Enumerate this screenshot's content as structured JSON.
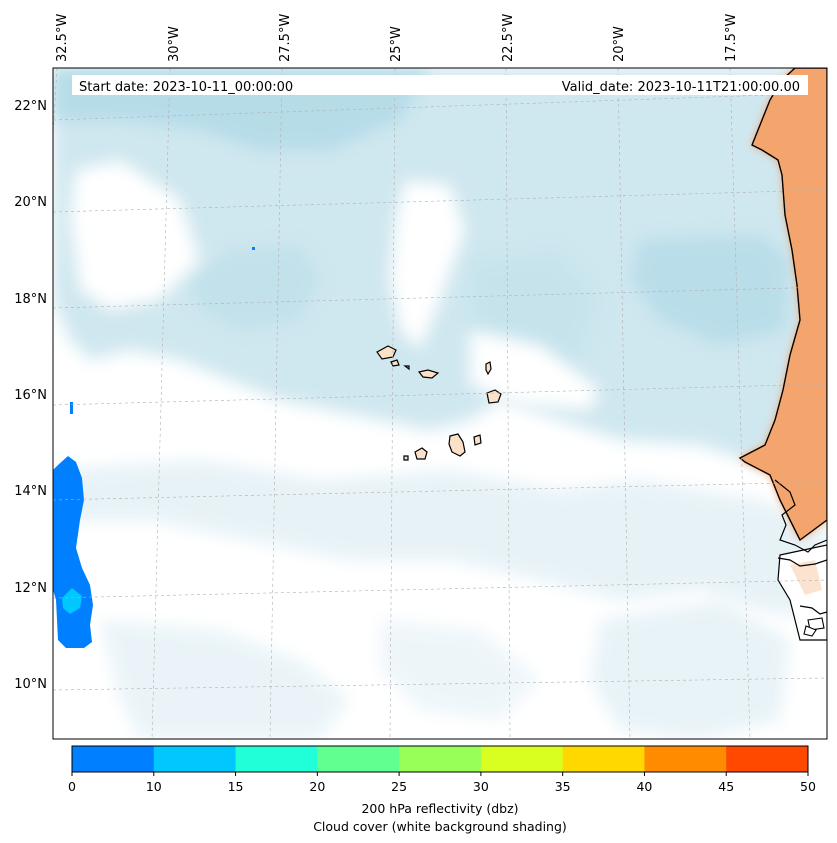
{
  "map": {
    "start_date_text": "Start date: 2023-10-11_00:00:00",
    "valid_date_text": "Valid_date: 2023-10-11T21:00:00.00",
    "lon_labels": [
      "32.5°W",
      "30°W",
      "27.5°W",
      "25°W",
      "22.5°W",
      "20°W",
      "17.5°W"
    ],
    "lat_labels": [
      "22°N",
      "20°N",
      "18°N",
      "16°N",
      "14°N",
      "12°N",
      "10°N"
    ]
  },
  "colorbar": {
    "ticks": [
      "0",
      "10",
      "15",
      "20",
      "25",
      "30",
      "35",
      "40",
      "45",
      "50"
    ],
    "colors": [
      "#0080ff",
      "#00c8ff",
      "#20ffd8",
      "#60ff90",
      "#98ff58",
      "#d8ff20",
      "#ffd800",
      "#ff8c00",
      "#ff4800"
    ],
    "label_line1": "200 hPa reflectivity (dbz)",
    "label_line2": "Cloud cover (white background shading)"
  },
  "colors": {
    "cloud_light": "#e6f2f7",
    "cloud_mid": "#cde6ef",
    "cloud_dark": "#b4dbe8",
    "land": "#f6a165",
    "land_light": "#fbd3b0",
    "island": "#fde0c8",
    "reflectivity_low": "#0080ff",
    "reflectivity_mid": "#00c8ff"
  }
}
